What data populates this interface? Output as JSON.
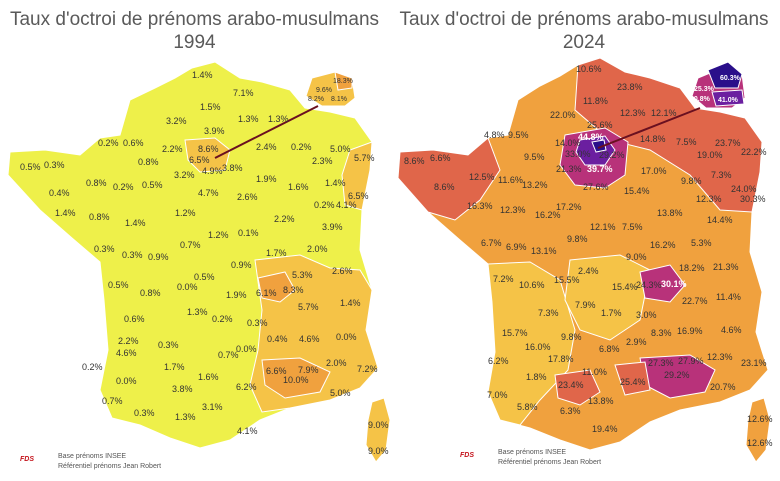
{
  "maps": [
    {
      "title_line1": "Taux d'octroi de prénoms arabo-musulmans",
      "title_line2": "1994",
      "colors": {
        "fill_main": "#eef04a",
        "fill_light": "#f7e64f",
        "fill_mid": "#f5c347",
        "fill_orange": "#f0a13e",
        "border": "#ffffff"
      },
      "inset_labels": [
        "18.3%",
        "9.6%",
        "8.2%",
        "8.1%"
      ],
      "labels": [
        "1.4%",
        "7.1%",
        "1.5%",
        "3.2%",
        "1.3%",
        "1.3%",
        "3.9%",
        "0.2%",
        "0.6%",
        "2.2%",
        "8.6%",
        "6.5%",
        "2.4%",
        "0.2%",
        "5.0%",
        "5.7%",
        "0.5%",
        "0.3%",
        "0.8%",
        "4.9%",
        "3.8%",
        "2.3%",
        "3.2%",
        "1.9%",
        "0.4%",
        "0.8%",
        "0.2%",
        "0.5%",
        "4.7%",
        "1.6%",
        "1.4%",
        "6.5%",
        "2.6%",
        "0.2%",
        "4.1%",
        "1.4%",
        "0.8%",
        "1.4%",
        "1.2%",
        "2.2%",
        "3.9%",
        "1.2%",
        "0.1%",
        "0.3%",
        "0.3%",
        "0.9%",
        "0.7%",
        "1.7%",
        "2.0%",
        "0.9%",
        "5.3%",
        "2.6%",
        "0.5%",
        "0.8%",
        "0.0%",
        "0.5%",
        "1.9%",
        "6.1%",
        "8.3%",
        "1.4%",
        "5.7%",
        "0.6%",
        "1.3%",
        "0.2%",
        "0.3%",
        "0.0%",
        "2.2%",
        "0.3%",
        "0.4%",
        "4.6%",
        "4.6%",
        "0.0%",
        "0.7%",
        "0.2%",
        "1.7%",
        "7.2%",
        "2.0%",
        "0.0%",
        "1.6%",
        "6.6%",
        "7.9%",
        "3.8%",
        "6.2%",
        "10.0%",
        "0.7%",
        "5.0%",
        "0.3%",
        "1.3%",
        "3.1%",
        "4.1%",
        "9.0%",
        "9.0%"
      ],
      "credit_line1": "Base prénoms INSEE",
      "credit_line2": "Référentiel prénoms Jean Robert",
      "logo_text": "FDS"
    },
    {
      "title_line1": "Taux d'octroi de prénoms arabo-musulmans",
      "title_line2": "2024",
      "colors": {
        "fill_main": "#f0a13e",
        "fill_yellow": "#f5c347",
        "fill_red": "#e0664a",
        "fill_magenta": "#b8327a",
        "fill_purple": "#6b1fa0",
        "fill_darkpurple": "#2a0f8a",
        "border": "#ffffff"
      },
      "inset_labels": [
        "60.3%",
        "25.3%",
        "30.8%",
        "41.0%"
      ],
      "labels": [
        "10.6%",
        "23.8%",
        "11.8%",
        "22.0%",
        "12.3%",
        "12.1%",
        "25.6%",
        "4.8%",
        "9.5%",
        "44.8%",
        "14.0%",
        "14.8%",
        "7.5%",
        "23.7%",
        "22.2%",
        "33.0%",
        "29.2%",
        "19.0%",
        "8.6%",
        "6.6%",
        "9.5%",
        "21.3%",
        "39.7%",
        "12.5%",
        "11.6%",
        "13.2%",
        "27.6%",
        "17.0%",
        "9.8%",
        "7.3%",
        "8.6%",
        "24.0%",
        "15.4%",
        "12.3%",
        "30.3%",
        "16.3%",
        "12.3%",
        "17.2%",
        "13.8%",
        "16.2%",
        "14.4%",
        "12.1%",
        "7.5%",
        "6.7%",
        "6.9%",
        "13.1%",
        "9.8%",
        "16.2%",
        "5.3%",
        "9.0%",
        "21.3%",
        "18.2%",
        "7.2%",
        "2.4%",
        "10.6%",
        "15.5%",
        "30.1%",
        "15.4%",
        "24.3%",
        "11.4%",
        "22.7%",
        "7.3%",
        "7.9%",
        "1.7%",
        "3.0%",
        "15.7%",
        "4.6%",
        "8.3%",
        "16.9%",
        "9.8%",
        "16.0%",
        "2.9%",
        "6.8%",
        "6.2%",
        "17.8%",
        "12.3%",
        "23.1%",
        "27.3%",
        "27.9%",
        "11.0%",
        "29.2%",
        "1.8%",
        "25.4%",
        "7.0%",
        "23.4%",
        "20.7%",
        "5.8%",
        "6.3%",
        "13.8%",
        "19.4%",
        "12.6%",
        "12.6%"
      ],
      "credit_line1": "Base prénoms INSEE",
      "credit_line2": "Référentiel prénoms Jean Robert",
      "logo_text": "FDS"
    }
  ]
}
